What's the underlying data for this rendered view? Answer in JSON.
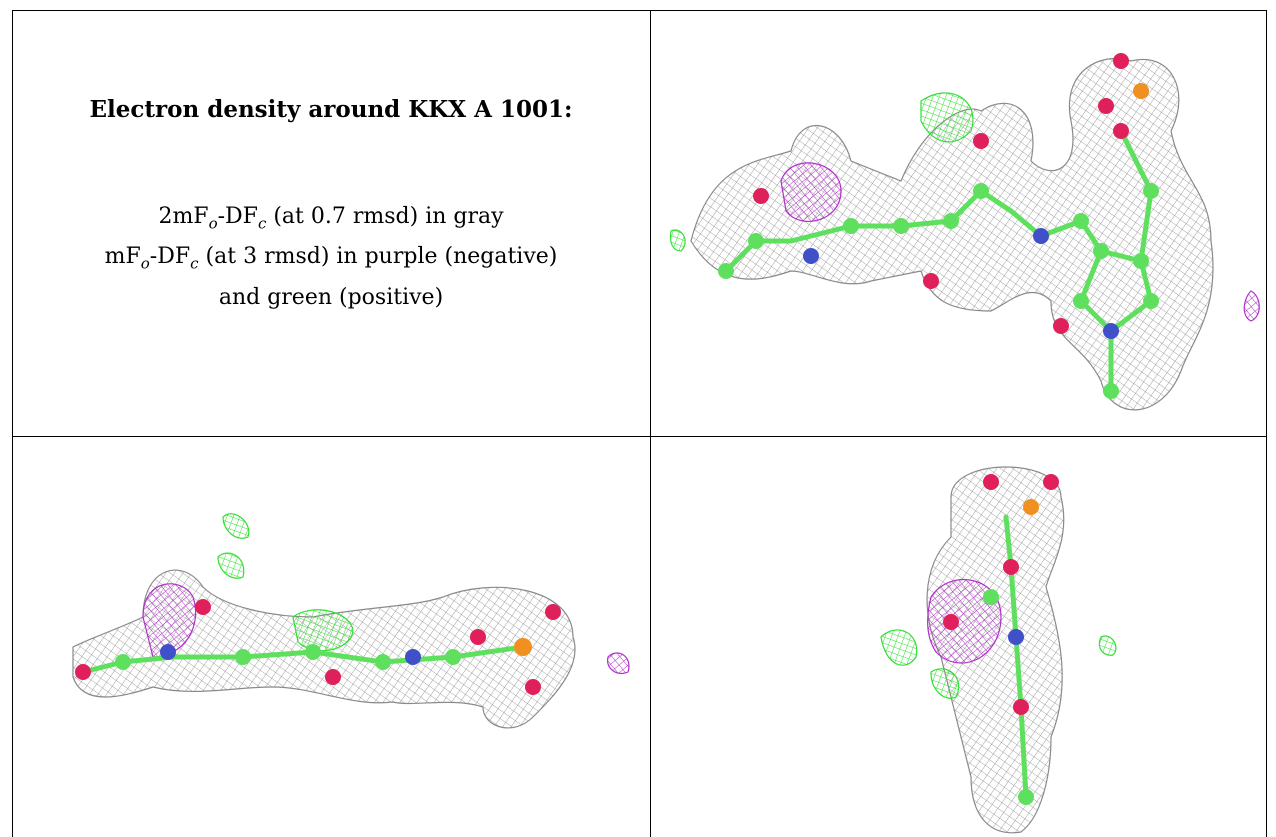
{
  "caption": {
    "title": "Electron density around KKX A 1001:",
    "line1_a": "2mF",
    "line1_sub1": "o",
    "line1_b": "-DF",
    "line1_sub2": "c",
    "line1_c": " (at 0.7 rmsd) in gray",
    "line2_a": "mF",
    "line2_sub1": "o",
    "line2_b": "-DF",
    "line2_sub2": "c",
    "line2_c": " (at 3 rmsd) in purple (negative)",
    "line3": "and green (positive)"
  },
  "colors": {
    "mesh_gray": "#8a8a8a",
    "negative_purple": "#b030c8",
    "positive_green": "#30e030",
    "carbon": "#5ee05e",
    "oxygen": "#e0205a",
    "nitrogen": "#4050c8",
    "phosphorus": "#f09020"
  },
  "panels": [
    {
      "view": "top-right"
    },
    {
      "view": "bottom-left"
    },
    {
      "view": "bottom-right"
    }
  ]
}
